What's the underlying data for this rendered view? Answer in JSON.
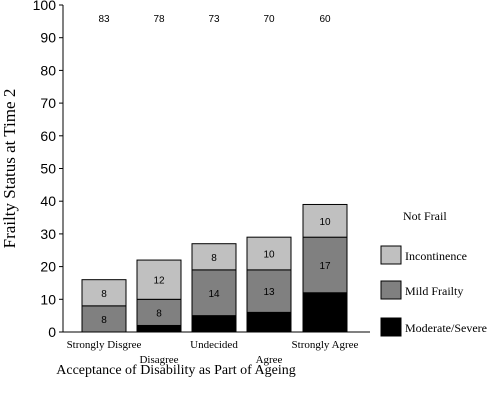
{
  "chart_data": {
    "type": "bar",
    "stacked": true,
    "title": "",
    "ylabel": "Frailty Status at Time 2",
    "xlabel": "Acceptance of Disability as Part of Ageing",
    "ylim": [
      0,
      100
    ],
    "yticks": [
      0,
      10,
      20,
      30,
      40,
      50,
      60,
      70,
      80,
      90,
      100
    ],
    "categories": [
      "Strongly Disgree",
      "Disagree",
      "Undecided",
      "Agree",
      "Strongly Agree"
    ],
    "top_labels": [
      "83",
      "78",
      "73",
      "70",
      "60"
    ],
    "series": [
      {
        "name": "Moderate/Severe",
        "color": "#000000",
        "values": [
          0,
          2,
          5,
          6,
          12
        ],
        "labels": [
          "",
          "",
          "",
          "",
          ""
        ]
      },
      {
        "name": "Mild Frailty",
        "color": "#808080",
        "values": [
          8,
          8,
          14,
          13,
          17
        ],
        "labels": [
          "8",
          "8",
          "14",
          "13",
          "17"
        ]
      },
      {
        "name": "Incontinence",
        "color": "#c0c0c0",
        "values": [
          8,
          12,
          8,
          10,
          10
        ],
        "labels": [
          "8",
          "12",
          "8",
          "10",
          "10"
        ]
      }
    ],
    "legend": {
      "placement": "right",
      "header": "Not Frail",
      "items": [
        "Incontinence",
        "Mild Frailty",
        "Moderate/Severe"
      ]
    },
    "grid": false
  }
}
